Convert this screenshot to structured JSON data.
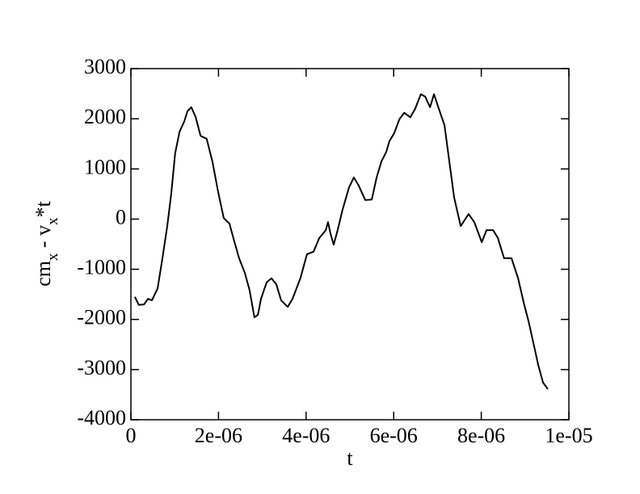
{
  "chart_data": {
    "type": "line",
    "x_label": "t",
    "y_label": [
      "cm",
      "x",
      " - v",
      "x",
      "*t"
    ],
    "xlim": [
      0,
      1e-05
    ],
    "ylim": [
      -4000,
      3000
    ],
    "xticks": [
      0,
      {
        "value": 2e-06,
        "label": "2e-06"
      },
      {
        "value": 4e-06,
        "label": "4e-06"
      },
      {
        "value": 6e-06,
        "label": "6e-06"
      },
      {
        "value": 8e-06,
        "label": "8e-06"
      },
      {
        "value": 1e-05,
        "label": "1e-05"
      }
    ],
    "yticks": [
      -4000,
      -3000,
      -2000,
      -1000,
      0,
      1000,
      2000,
      3000
    ],
    "series": [
      {
        "color": "#000000",
        "x": [
          9e-08,
          1.8e-07,
          3e-07,
          3.9e-07,
          4.8e-07,
          6.1e-07,
          7.2e-07,
          8.3e-07,
          9.2e-07,
          1.01e-06,
          1.11e-06,
          1.22e-06,
          1.29e-06,
          1.38e-06,
          1.48e-06,
          1.59e-06,
          1.73e-06,
          1.86e-06,
          1.99e-06,
          2.12e-06,
          2.25e-06,
          2.34e-06,
          2.47e-06,
          2.6e-06,
          2.71e-06,
          2.82e-06,
          2.9e-06,
          2.97e-06,
          3.1e-06,
          3.21e-06,
          3.32e-06,
          3.43e-06,
          3.58e-06,
          3.69e-06,
          3.87e-06,
          4.02e-06,
          4.17e-06,
          4.3e-06,
          4.45e-06,
          4.5e-06,
          4.56e-06,
          4.63e-06,
          4.72e-06,
          4.83e-06,
          4.98e-06,
          5.09e-06,
          5.2e-06,
          5.35e-06,
          5.5e-06,
          5.61e-06,
          5.72e-06,
          5.83e-06,
          5.9e-06,
          6.01e-06,
          6.13e-06,
          6.24e-06,
          6.38e-06,
          6.49e-06,
          6.62e-06,
          6.72e-06,
          6.83e-06,
          6.92e-06,
          7.03e-06,
          7.16e-06,
          7.27e-06,
          7.38e-06,
          7.53e-06,
          7.71e-06,
          7.84e-06,
          8.01e-06,
          8.12e-06,
          8.27e-06,
          8.38e-06,
          8.52e-06,
          8.69e-06,
          8.84e-06,
          8.97e-06,
          9.08e-06,
          9.19e-06,
          9.3e-06,
          9.41e-06,
          9.52e-06
        ],
        "values": [
          -1550,
          -1710,
          -1700,
          -1590,
          -1620,
          -1380,
          -780,
          -140,
          500,
          1310,
          1740,
          1950,
          2150,
          2230,
          2030,
          1660,
          1600,
          1150,
          550,
          20,
          -90,
          -380,
          -780,
          -1070,
          -1420,
          -1960,
          -1910,
          -1590,
          -1260,
          -1180,
          -1300,
          -1620,
          -1750,
          -1590,
          -1180,
          -700,
          -650,
          -380,
          -220,
          -60,
          -300,
          -510,
          -220,
          180,
          630,
          830,
          670,
          380,
          390,
          830,
          1150,
          1340,
          1550,
          1710,
          1990,
          2120,
          2030,
          2200,
          2490,
          2440,
          2230,
          2490,
          2200,
          1870,
          1150,
          430,
          -140,
          100,
          -60,
          -460,
          -220,
          -220,
          -380,
          -780,
          -780,
          -1180,
          -1670,
          -2040,
          -2470,
          -2910,
          -3260,
          -3390
        ]
      }
    ]
  }
}
